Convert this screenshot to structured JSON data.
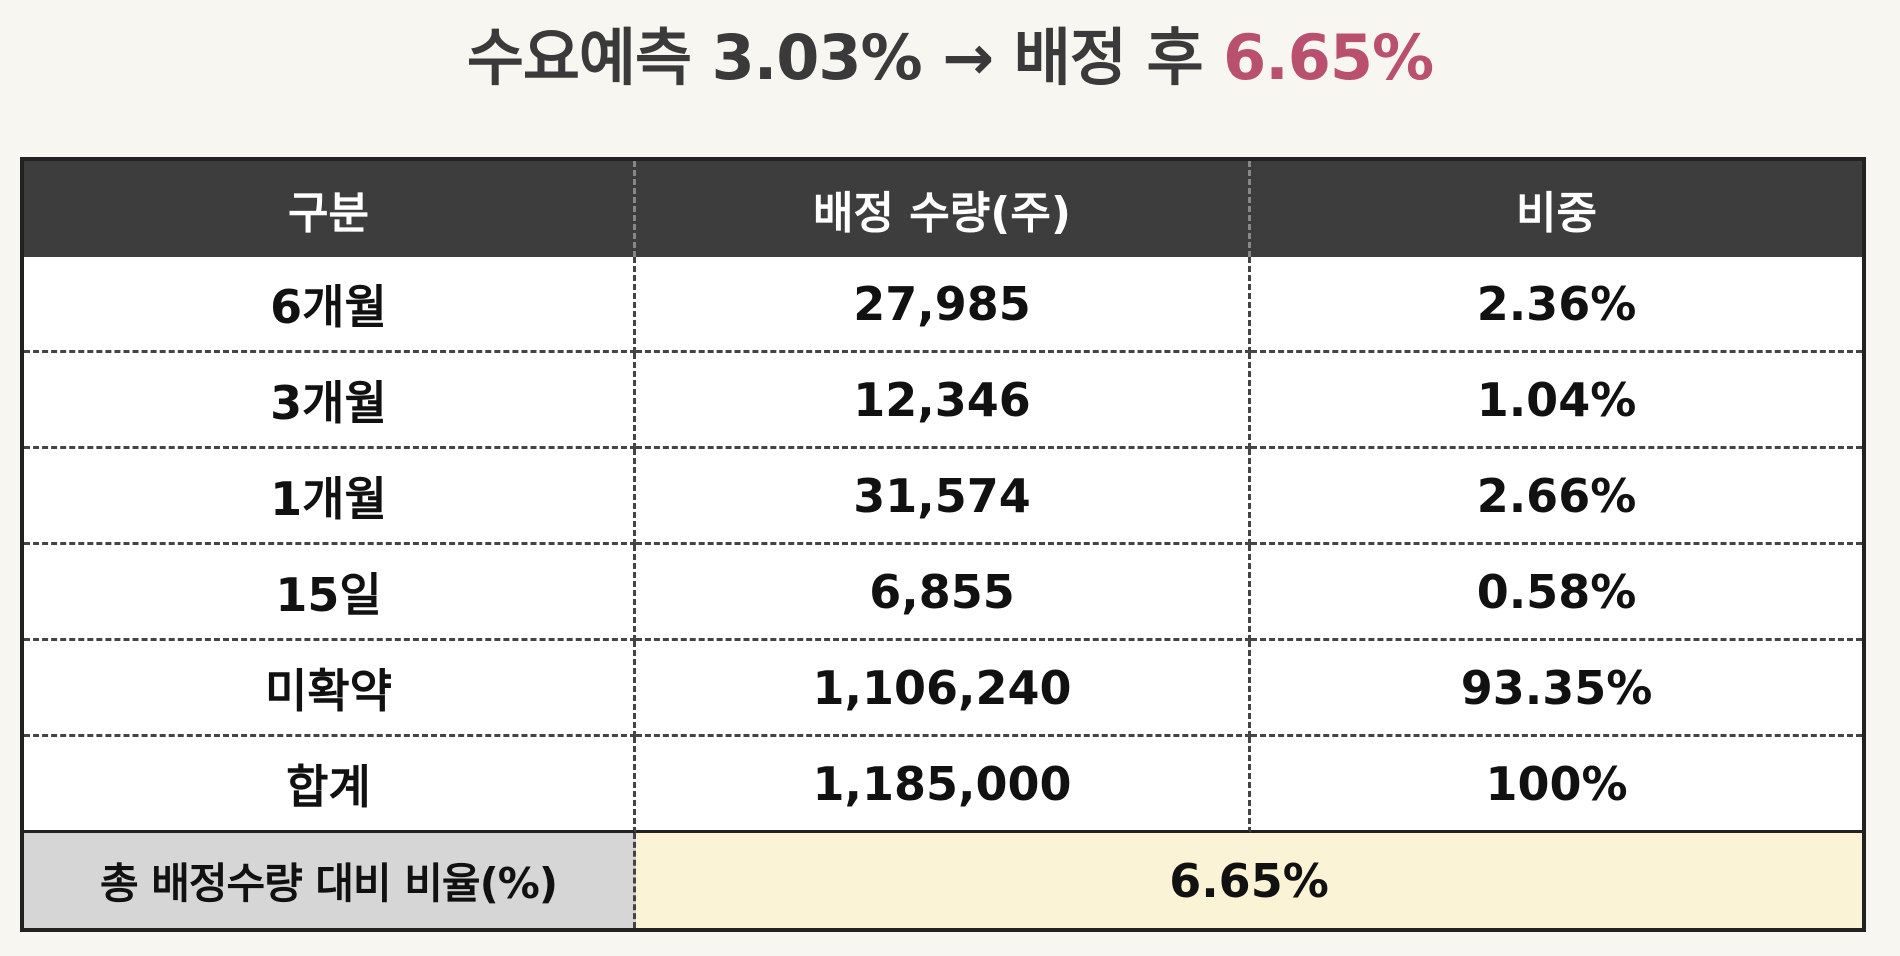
{
  "title": {
    "prefix": "수요예측 3.03% → 배정 후 ",
    "highlight": "6.65%"
  },
  "table": {
    "headers": [
      "구분",
      "배정 수량(주)",
      "비중"
    ],
    "rows": [
      {
        "category": "6개월",
        "quantity": "27,985",
        "ratio": "2.36%"
      },
      {
        "category": "3개월",
        "quantity": "12,346",
        "ratio": "1.04%"
      },
      {
        "category": "1개월",
        "quantity": "31,574",
        "ratio": "2.66%"
      },
      {
        "category": "15일",
        "quantity": "6,855",
        "ratio": "0.58%"
      },
      {
        "category": "미확약",
        "quantity": "1,106,240",
        "ratio": "93.35%"
      },
      {
        "category": "합계",
        "quantity": "1,185,000",
        "ratio": "100%"
      }
    ],
    "footer": {
      "label": "총 배정수량 대비 비율(%)",
      "value": "6.65%"
    }
  },
  "colors": {
    "accent": "#b9506f",
    "header_bg": "#3d3d3d",
    "footer_label_bg": "#d6d6d6",
    "footer_value_bg": "#fbf3d6"
  }
}
